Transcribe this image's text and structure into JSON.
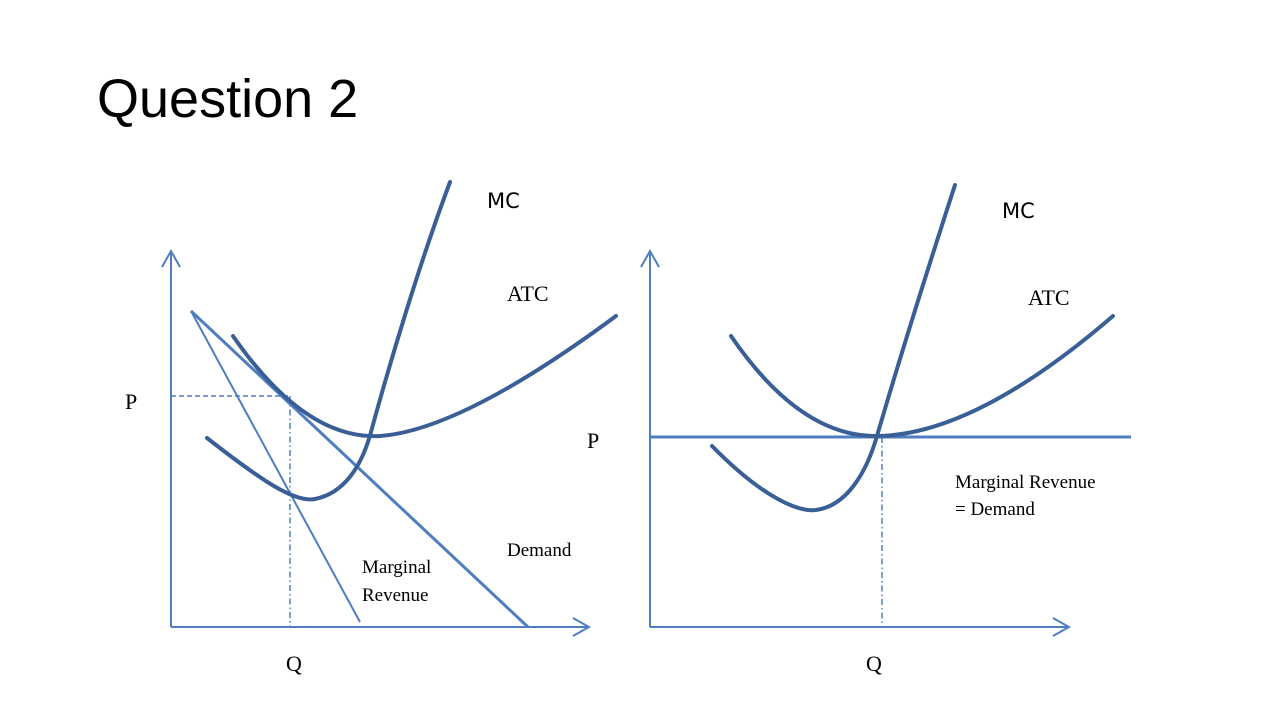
{
  "slide": {
    "title": "Question 2"
  },
  "left_diagram": {
    "mc_label": "MC",
    "atc_label": "ATC",
    "price_label": "P",
    "quantity_label": "Q",
    "demand_label": "Demand",
    "mr_label_line1": "Marginal",
    "mr_label_line2": "Revenue"
  },
  "right_diagram": {
    "mc_label": "MC",
    "atc_label": "ATC",
    "price_label": "P",
    "quantity_label": "Q",
    "mr_label_line1": "Marginal Revenue",
    "mr_label_line2": "= Demand"
  },
  "colors": {
    "curve": "#3a5f96",
    "axis": "#4f7ec0",
    "text": "#000000"
  }
}
